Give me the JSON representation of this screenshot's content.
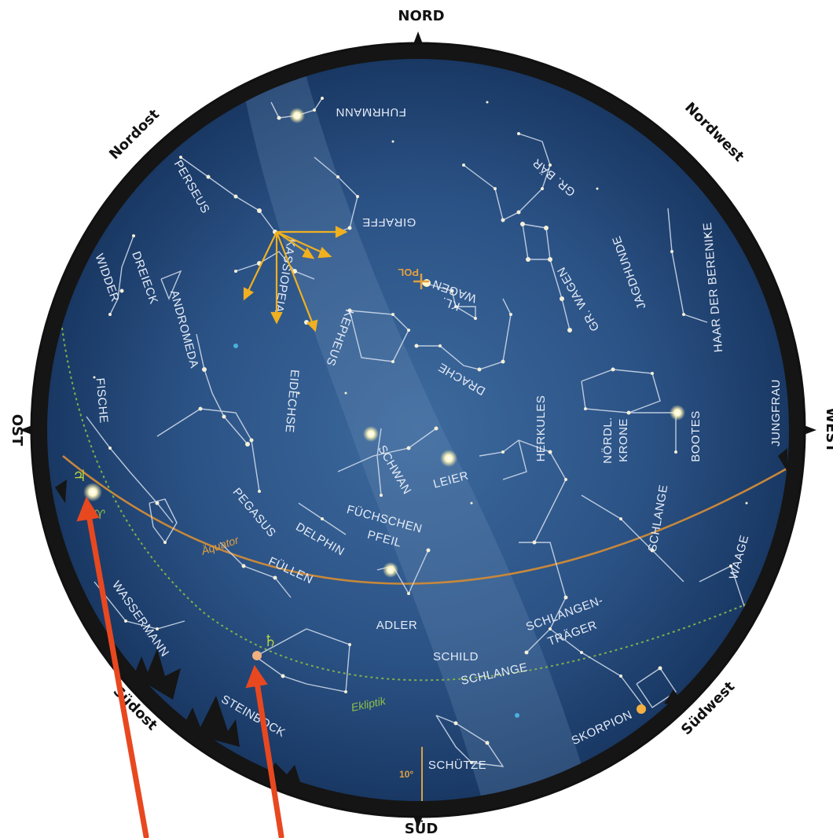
{
  "compass": {
    "north": "NORD",
    "south": "SÜD",
    "east": "OST",
    "west": "WEST",
    "northeast": "Nordost",
    "northwest": "Nordwest",
    "southeast": "Südost",
    "southwest": "Südwest"
  },
  "lines": {
    "equator": "Äquator",
    "ecliptic": "Ekliptik"
  },
  "scale_label": "10°",
  "pole_label": "POL",
  "planet_symbols": {
    "jupiter": "♃",
    "saturn": "♄",
    "aries_point": "♈"
  },
  "constellations": {
    "fuhrmann": "FUHRMANN",
    "perseus": "PERSEUS",
    "giraffe": "GIRAFFE",
    "gr_baer": "GR. BÄR",
    "widder": "WIDDER",
    "dreieck": "DREIECK",
    "kassiopeia": "KASSIOPEIA",
    "kl_wagen_1": "KL.",
    "kl_wagen_2": "WAGEN",
    "gr_wagen": "GR. WAGEN",
    "jagdhunde": "JAGDHUNDE",
    "haar": "HAAR DER BERENIKE",
    "andromeda": "ANDROMEDA",
    "kepheus": "KEPHEUS",
    "eidechse": "EIDECHSE",
    "drache": "DRACHE",
    "fische": "FISCHE",
    "herkules": "HERKULES",
    "noerdl": "NÖRDL.",
    "krone": "KRONE",
    "bootes": "BOOTES",
    "jungfrau": "JUNGFRAU",
    "schwan": "SCHWAN",
    "leier": "LEIER",
    "pegasus": "PEGASUS",
    "fuechschen": "FÜCHSCHEN",
    "pfeil": "PFEIL",
    "delphin": "DELPHIN",
    "schlange_top": "SCHLANGE",
    "fuellen": "FÜLLEN",
    "waage": "WAAGE",
    "wassermann": "WASSERMANN",
    "adler": "ADLER",
    "schlangentraeger_1": "SCHLANGEN-",
    "schlangentraeger_2": "TRÄGER",
    "schild": "SCHILD",
    "schlange_bottom": "SCHLANGE",
    "steinbock": "STEINBOCK",
    "skorpion": "SKORPION",
    "schuetze": "SCHÜTZE"
  }
}
